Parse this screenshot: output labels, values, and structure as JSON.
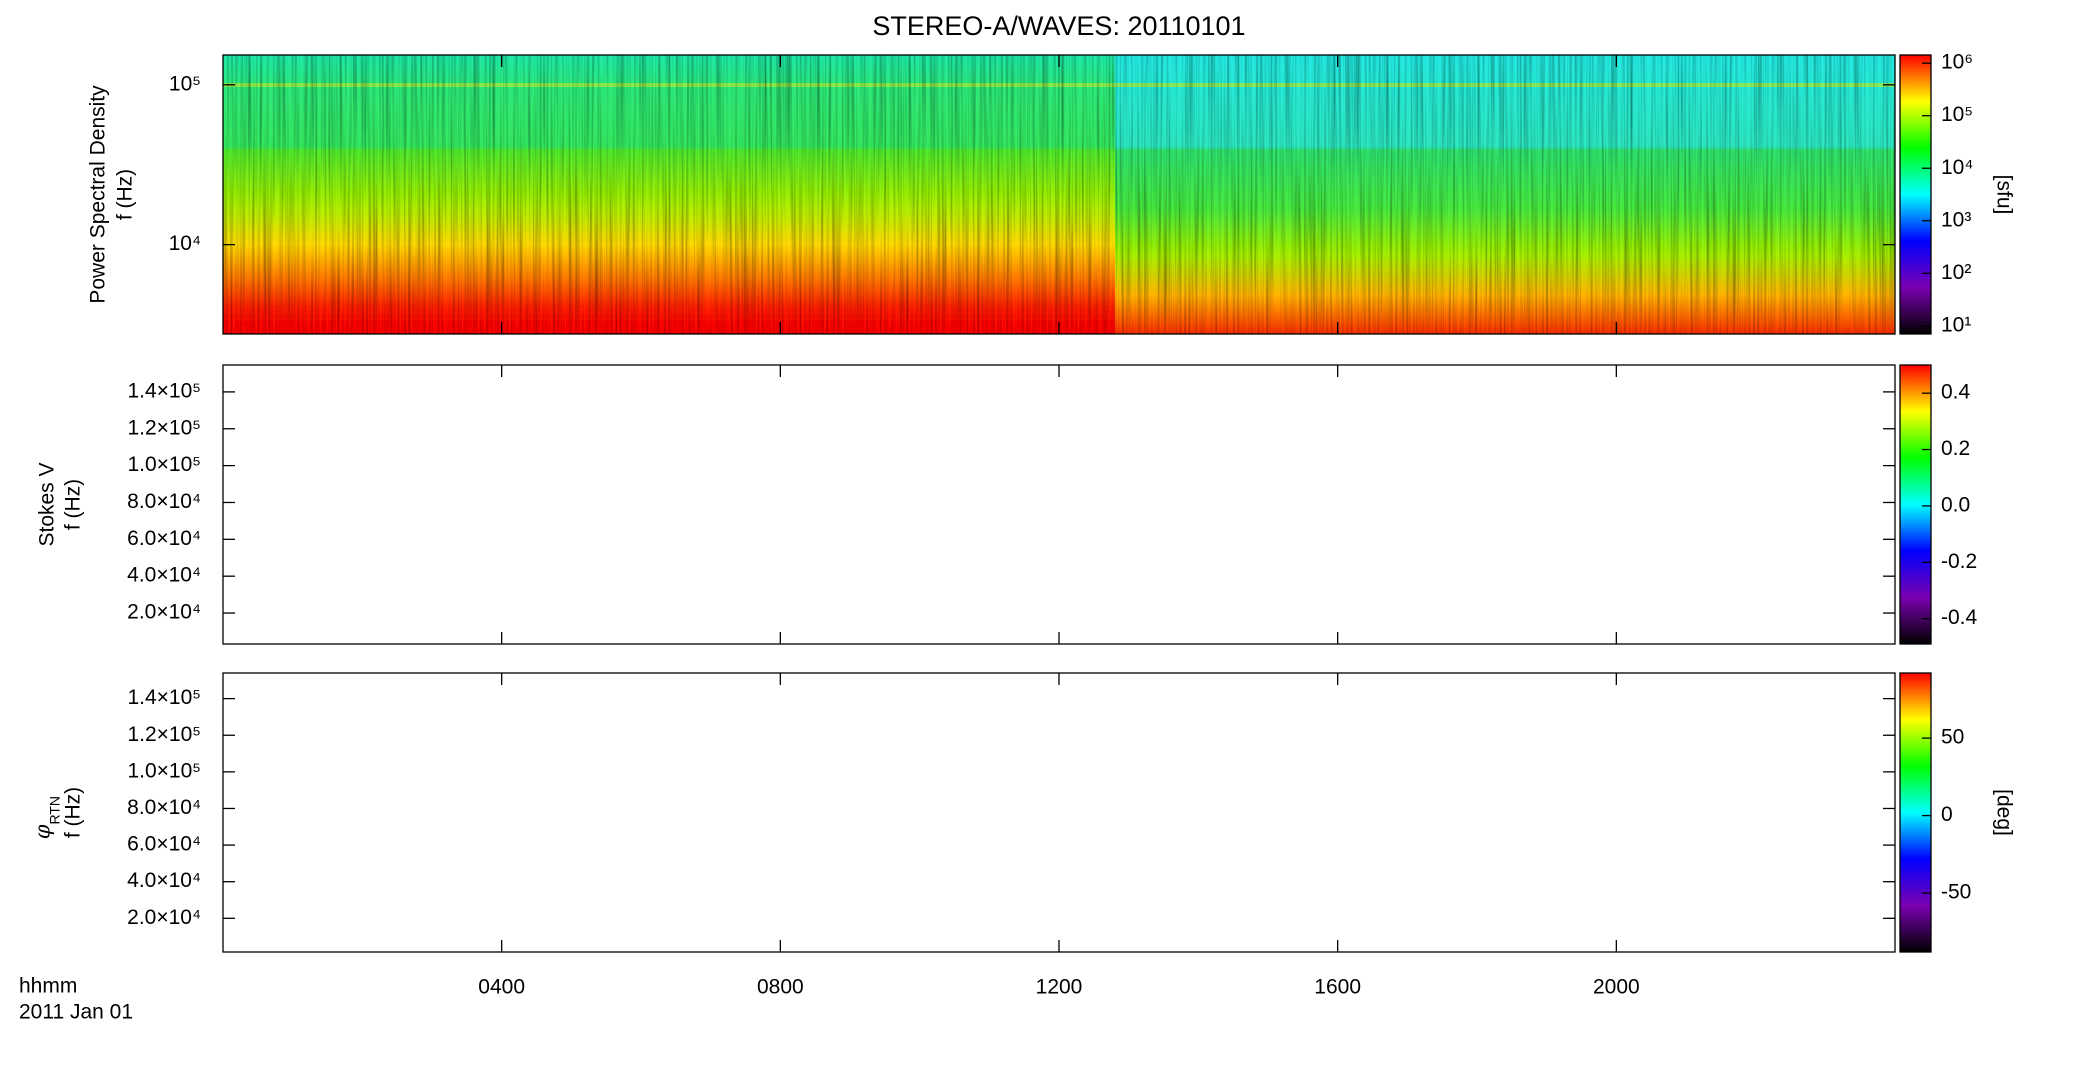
{
  "chart_data": [
    {
      "type": "spectrogram",
      "title": "STEREO-A/WAVES: 20110101",
      "ylabel": "Power Spectral Density",
      "ylabel_unit": "f (Hz)",
      "ylog": true,
      "ylim": [
        2760,
        153600
      ],
      "yticks": [
        {
          "value": 10000,
          "label": "10⁴"
        },
        {
          "value": 100000,
          "label": "10⁵"
        }
      ],
      "zlog": true,
      "zlim": [
        7,
        1430000
      ],
      "zticks": [
        {
          "value": 10,
          "label": "10¹"
        },
        {
          "value": 100,
          "label": "10²"
        },
        {
          "value": 1000,
          "label": "10³"
        },
        {
          "value": 10000,
          "label": "10⁴"
        },
        {
          "value": 100000,
          "label": "10⁵"
        },
        {
          "value": 1000000,
          "label": "10⁶"
        }
      ],
      "zlabel": "[sfu]",
      "colormap": [
        "#000000",
        "#7a00b0",
        "#0000ff",
        "#00ffff",
        "#00ff00",
        "#ffff00",
        "#ff0000"
      ]
    },
    {
      "type": "spectrogram",
      "ylabel": "Stokes V",
      "ylabel_unit": "f (Hz)",
      "ylog": false,
      "ylim": [
        3200,
        154600
      ],
      "yticks": [
        {
          "value": 20000,
          "label": "2.0×10⁴"
        },
        {
          "value": 40000,
          "label": "4.0×10⁴"
        },
        {
          "value": 60000,
          "label": "6.0×10⁴"
        },
        {
          "value": 80000,
          "label": "8.0×10⁴"
        },
        {
          "value": 100000,
          "label": "1.0×10⁵"
        },
        {
          "value": 120000,
          "label": "1.2×10⁵"
        },
        {
          "value": 140000,
          "label": "1.4×10⁵"
        }
      ],
      "zlog": false,
      "zlim": [
        -0.49,
        0.5
      ],
      "zticks": [
        -0.4,
        -0.2,
        {
          "value": 0,
          "label": "0.0"
        },
        0.2,
        0.4
      ],
      "colormap": [
        "#000000",
        "#7a00b0",
        "#0000ff",
        "#00ffff",
        "#00ff00",
        "#ffff00",
        "#ff0000"
      ]
    },
    {
      "type": "spectrogram",
      "ylabel": "φ",
      "ylabel_sub": "RTN",
      "ylabel_unit": "f (Hz)",
      "ylog": false,
      "ylim": [
        1600,
        154000
      ],
      "yticks": [
        {
          "value": 20000,
          "label": "2.0×10⁴"
        },
        {
          "value": 40000,
          "label": "4.0×10⁴"
        },
        {
          "value": 60000,
          "label": "6.0×10⁴"
        },
        {
          "value": 80000,
          "label": "8.0×10⁴"
        },
        {
          "value": 100000,
          "label": "1.0×10⁵"
        },
        {
          "value": 120000,
          "label": "1.2×10⁵"
        },
        {
          "value": 140000,
          "label": "1.4×10⁵"
        }
      ],
      "zlog": false,
      "zlim": [
        -88,
        92
      ],
      "zticks": [
        -50,
        0,
        50
      ],
      "zlabel": "[deg]",
      "colormap": [
        "#000000",
        "#7a00b0",
        "#0000ff",
        "#00ffff",
        "#00ff00",
        "#ffff00",
        "#ff0000"
      ],
      "xlabel": "hhmm",
      "date": "2011 Jan 01",
      "xlim": [
        0,
        24
      ],
      "xticks": [
        {
          "value": 4,
          "label": "0400"
        },
        {
          "value": 8,
          "label": "0800"
        },
        {
          "value": 12,
          "label": "1200"
        },
        {
          "value": 16,
          "label": "1600"
        },
        {
          "value": 20,
          "label": "2000"
        }
      ]
    }
  ]
}
